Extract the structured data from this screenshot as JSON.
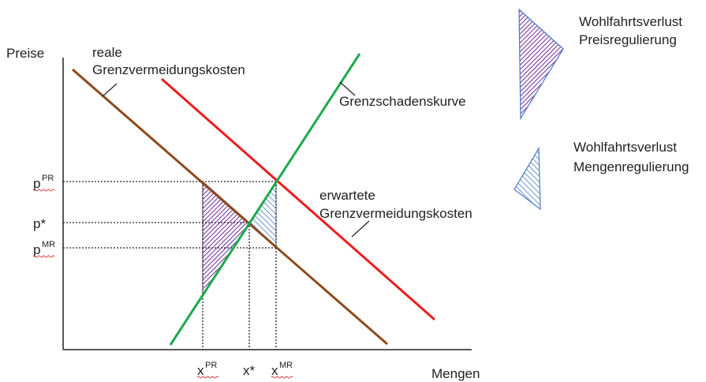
{
  "axes": {
    "y_label": "Preise",
    "x_label": "Mengen"
  },
  "curves": {
    "real_mac": {
      "label_line1": "reale",
      "label_line2": "Grenzvermeidungskosten",
      "color": "#8b4a1c"
    },
    "expected_mac": {
      "label_line1": "erwartete",
      "label_line2": "Grenzvermeidungskosten",
      "color": "#ee1c1c"
    },
    "damage": {
      "label": "Grenzschadenskurve",
      "color": "#1daa4b"
    }
  },
  "price_ticks": {
    "pr": {
      "base": "p",
      "sup": "PR"
    },
    "star": {
      "text": "p*"
    },
    "mr": {
      "base": "p",
      "sup": "MR"
    }
  },
  "quantity_ticks": {
    "pr": {
      "base": "x",
      "sup": "PR"
    },
    "star": {
      "text": "x*"
    },
    "mr": {
      "base": "x",
      "sup": "MR"
    }
  },
  "legend": {
    "price_reg": {
      "line1": "Wohlfahrtsverlust",
      "line2": "Preisregulierung",
      "color": "#7a3aa0"
    },
    "quantity_reg": {
      "line1": "Wohlfahrtsverlust",
      "line2": "Mengenregulierung",
      "color": "#4a78c8"
    }
  }
}
